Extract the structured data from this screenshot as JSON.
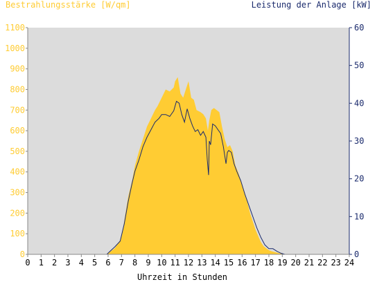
{
  "chart_data": {
    "type": "area",
    "title_left": "Bestrahlungsstärke [W/qm]",
    "title_right": "Leistung der Anlage [kW]",
    "xlabel": "Uhrzeit in Stunden",
    "xlim": [
      0,
      24
    ],
    "ylim_left": [
      0,
      1100
    ],
    "ylim_right": [
      0,
      60
    ],
    "x_ticks": [
      "0",
      "1",
      "2",
      "3",
      "4",
      "5",
      "6",
      "7",
      "8",
      "9",
      "10",
      "11",
      "12",
      "13",
      "14",
      "15",
      "16",
      "17",
      "18",
      "19",
      "20",
      "21",
      "22",
      "23",
      "24"
    ],
    "y_left_ticks": [
      "0",
      "100",
      "200",
      "300",
      "400",
      "500",
      "600",
      "700",
      "800",
      "900",
      "1000",
      "1100"
    ],
    "y_right_ticks": [
      "0",
      "10",
      "20",
      "30",
      "40",
      "50",
      "60"
    ],
    "grid": false,
    "colors": {
      "irradiance": "#ffcc33",
      "power": "#1a2a6c",
      "left_axis_text": "#ffcc33",
      "right_axis_text": "#1a2a6c",
      "plot_background": "#dcdcdc"
    },
    "series": [
      {
        "name": "Bestrahlungsstärke",
        "axis": "left",
        "x": [
          0,
          5.9,
          6.1,
          6.5,
          6.9,
          7.1,
          7.3,
          7.5,
          7.8,
          8.0,
          8.3,
          8.6,
          8.9,
          9.2,
          9.5,
          9.7,
          10.0,
          10.3,
          10.6,
          10.9,
          11.0,
          11.2,
          11.4,
          11.6,
          11.8,
          12.0,
          12.2,
          12.4,
          12.6,
          12.9,
          13.1,
          13.3,
          13.45,
          13.55,
          13.7,
          13.9,
          14.1,
          14.3,
          14.5,
          14.7,
          14.9,
          15.1,
          15.3,
          15.5,
          15.7,
          16.0,
          16.2,
          16.4,
          16.6,
          16.8,
          17.0,
          17.2,
          17.4,
          17.6,
          17.8,
          18.0,
          18.2,
          18.5,
          18.8,
          19.1,
          19.4,
          24
        ],
        "values": [
          0,
          0,
          10,
          30,
          70,
          120,
          200,
          280,
          360,
          430,
          500,
          560,
          620,
          660,
          700,
          720,
          760,
          800,
          790,
          810,
          840,
          860,
          780,
          760,
          800,
          840,
          760,
          750,
          700,
          690,
          680,
          660,
          600,
          650,
          700,
          710,
          700,
          690,
          620,
          560,
          520,
          530,
          500,
          430,
          400,
          340,
          300,
          250,
          200,
          160,
          120,
          90,
          60,
          40,
          30,
          20,
          15,
          10,
          5,
          2,
          0,
          0
        ]
      },
      {
        "name": "Leistung der Anlage",
        "axis": "right",
        "x": [
          0,
          5.9,
          6.2,
          6.5,
          6.9,
          7.2,
          7.5,
          7.8,
          8.0,
          8.3,
          8.6,
          8.9,
          9.2,
          9.5,
          9.8,
          10.0,
          10.3,
          10.6,
          10.9,
          11.1,
          11.3,
          11.5,
          11.7,
          11.9,
          12.1,
          12.3,
          12.5,
          12.7,
          12.9,
          13.1,
          13.3,
          13.4,
          13.5,
          13.55,
          13.65,
          13.8,
          14.0,
          14.2,
          14.4,
          14.6,
          14.8,
          14.9,
          15.0,
          15.2,
          15.4,
          15.6,
          15.9,
          16.2,
          16.5,
          16.8,
          17.1,
          17.4,
          17.7,
          18.0,
          18.3,
          18.6,
          18.9,
          19.2,
          24
        ],
        "values": [
          0,
          0,
          1,
          2,
          3.5,
          8,
          14,
          19,
          22,
          25,
          28.5,
          31,
          33,
          35,
          36,
          37,
          37,
          36.5,
          38,
          40.5,
          40,
          37,
          35,
          38.5,
          36,
          34,
          32.5,
          33,
          31.5,
          32.5,
          31,
          25,
          21,
          30,
          29,
          34.5,
          34,
          33,
          32,
          28.5,
          24,
          27,
          27.5,
          27,
          24,
          22,
          19.5,
          16,
          13,
          10,
          7,
          4.5,
          2.5,
          1.5,
          1.5,
          0.8,
          0.3,
          0,
          0
        ]
      }
    ]
  }
}
